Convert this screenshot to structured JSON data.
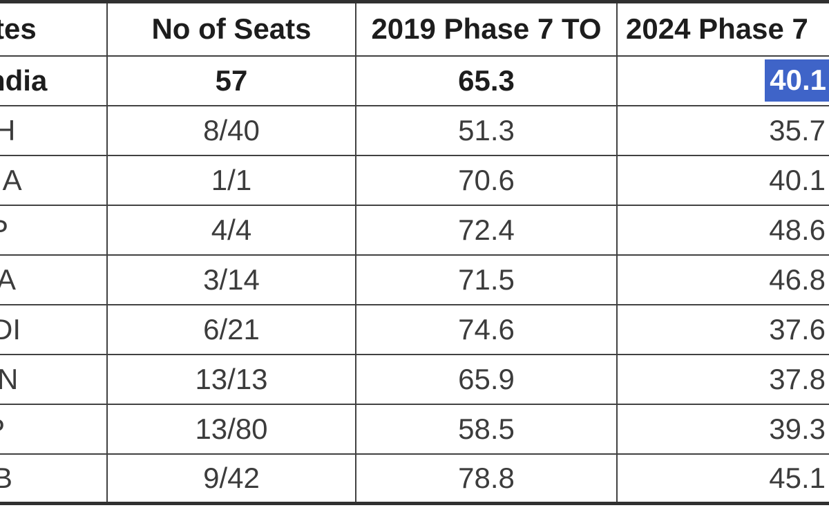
{
  "chart_data": {
    "type": "table",
    "columns": [
      "tes",
      "No of Seats",
      "2019 Phase 7 TO",
      "2024 Phase 7"
    ],
    "rows": [
      {
        "state": "ndia",
        "seats": "57",
        "turnout_2019": "65.3",
        "turnout_2024": "40.1",
        "bold": true,
        "selected_2024": true
      },
      {
        "state": "H",
        "seats": "8/40",
        "turnout_2019": "51.3",
        "turnout_2024": "35.7",
        "bold": false,
        "selected_2024": false
      },
      {
        "state": "IA",
        "seats": "1/1",
        "turnout_2019": "70.6",
        "turnout_2024": "40.1",
        "bold": false,
        "selected_2024": false
      },
      {
        "state": "P",
        "seats": "4/4",
        "turnout_2019": "72.4",
        "turnout_2024": "48.6",
        "bold": false,
        "selected_2024": false
      },
      {
        "state": "A",
        "seats": "3/14",
        "turnout_2019": "71.5",
        "turnout_2024": "46.8",
        "bold": false,
        "selected_2024": false
      },
      {
        "state": "DI",
        "seats": "6/21",
        "turnout_2019": "74.6",
        "turnout_2024": "37.6",
        "bold": false,
        "selected_2024": false
      },
      {
        "state": "N",
        "seats": "13/13",
        "turnout_2019": "65.9",
        "turnout_2024": "37.8",
        "bold": false,
        "selected_2024": false
      },
      {
        "state": "P",
        "seats": "13/80",
        "turnout_2019": "58.5",
        "turnout_2024": "39.3",
        "bold": false,
        "selected_2024": false
      },
      {
        "state": "B",
        "seats": "9/42",
        "turnout_2019": "78.8",
        "turnout_2024": "45.1",
        "bold": false,
        "selected_2024": false
      }
    ]
  },
  "selection": {
    "value": "40.1",
    "background": "#3f64c8",
    "text_color": "#ffffff"
  },
  "colors": {
    "border": "#414141",
    "outer_border": "#303030",
    "header_text": "#1d1d1d",
    "body_text": "#3c3c3c",
    "background": "#ffffff"
  }
}
